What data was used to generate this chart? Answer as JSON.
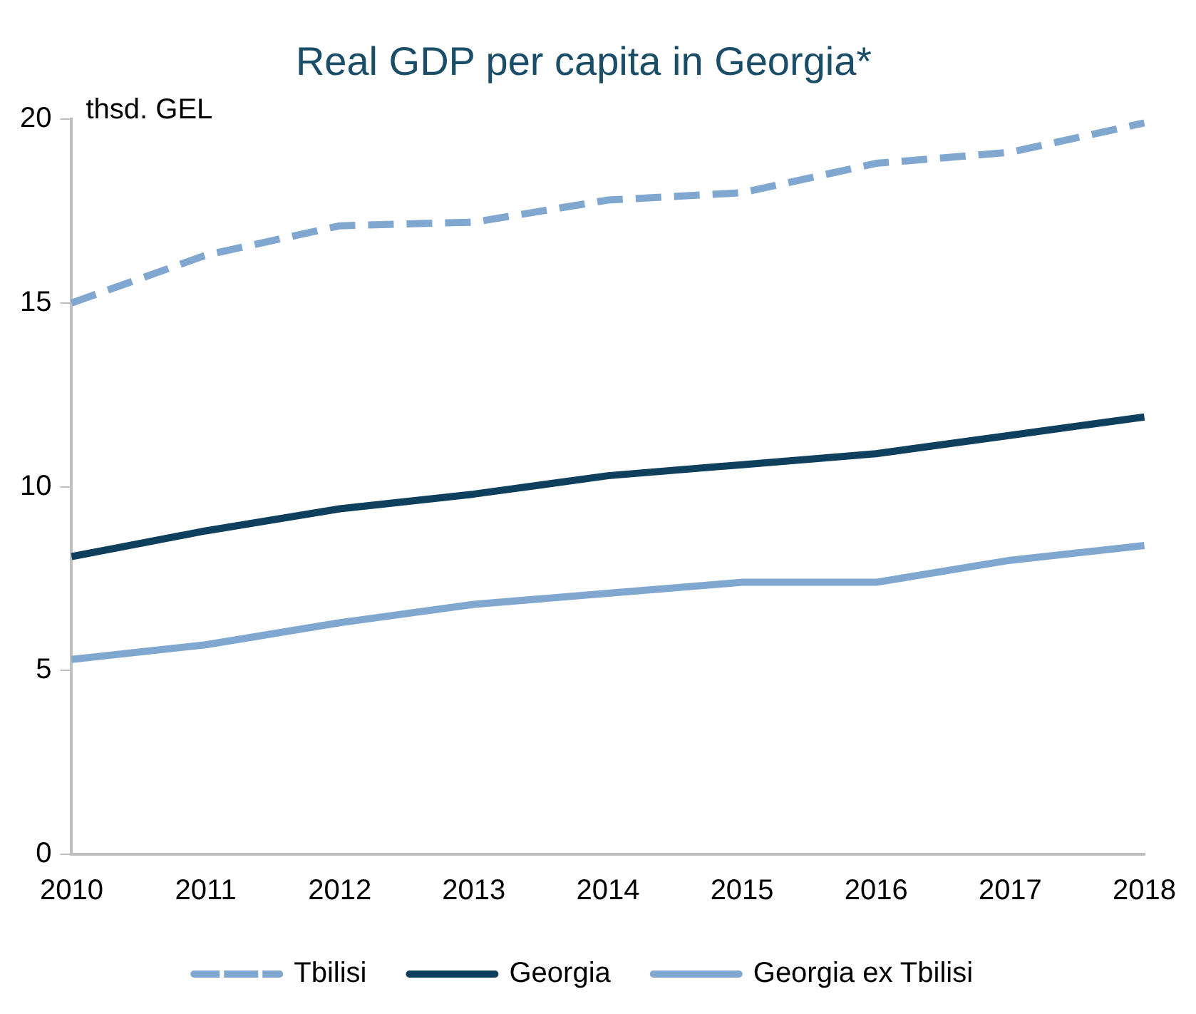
{
  "chart_data": {
    "type": "line",
    "title": "Real GDP per capita in Georgia*",
    "ylabel": "thsd. GEL",
    "categories": [
      "2010",
      "2011",
      "2012",
      "2013",
      "2014",
      "2015",
      "2016",
      "2017",
      "2018"
    ],
    "series": [
      {
        "name": "Tbilisi",
        "color": "#7fa7cf",
        "line_style": "dashed",
        "values": [
          15.0,
          16.3,
          17.1,
          17.2,
          17.8,
          18.0,
          18.8,
          19.1,
          19.9
        ]
      },
      {
        "name": "Georgia",
        "color": "#0e3f5c",
        "line_style": "solid",
        "values": [
          8.1,
          8.8,
          9.4,
          9.8,
          10.3,
          10.6,
          10.9,
          11.4,
          11.9
        ]
      },
      {
        "name": "Georgia ex Tbilisi",
        "color": "#7fa7cf",
        "line_style": "solid",
        "values": [
          5.3,
          5.7,
          6.3,
          6.8,
          7.1,
          7.4,
          7.4,
          8.0,
          8.4
        ]
      }
    ],
    "ylim": [
      0,
      20
    ],
    "yticks": [
      0,
      5,
      10,
      15,
      20
    ],
    "grid": false,
    "legend": "bottom",
    "marker": "none"
  }
}
